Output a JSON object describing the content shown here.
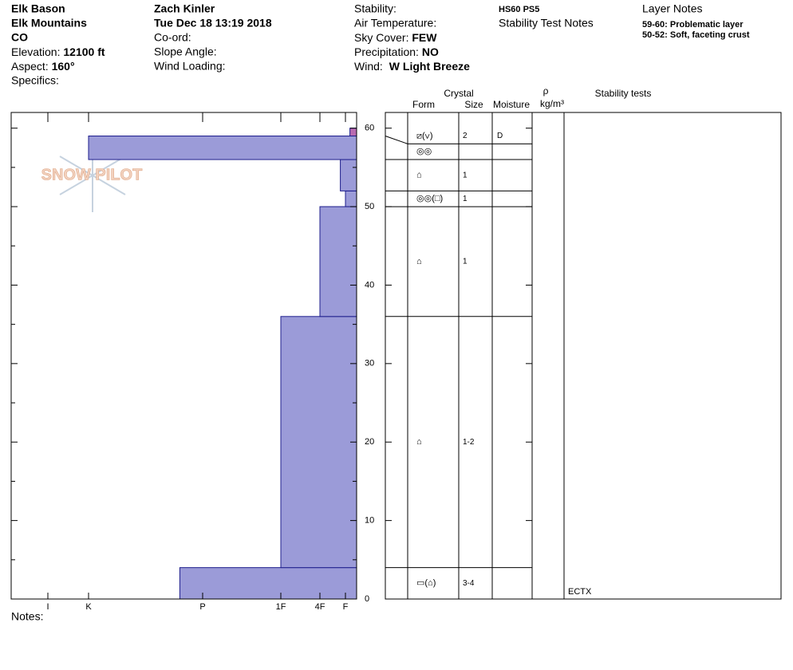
{
  "header": {
    "location": "Elk Bason",
    "range": "Elk Mountains",
    "state": "CO",
    "elevation_label": "Elevation:",
    "elevation": "12100 ft",
    "aspect_label": "Aspect:",
    "aspect": "160°",
    "specifics": "Specifics:",
    "observer": "Zach Kinler",
    "date": "Tue Dec 18 13:19 2018",
    "coord": "Co-ord:",
    "slope": "Slope Angle:",
    "wind_loading": "Wind Loading:",
    "stability": "Stability:",
    "air_temp": "Air Temperature:",
    "sky_label": "Sky Cover:",
    "sky": "FEW",
    "precip_label": "Precipitation:",
    "precip": "NO",
    "wind_label": "Wind:",
    "wind": "W Light Breeze",
    "hs": "HS60 PS5",
    "stability_notes": "Stability Test Notes",
    "layer_notes_title": "Layer Notes",
    "layer_notes": [
      [
        "59-60:",
        "Problematic layer"
      ],
      [
        "50-52:",
        "Soft, faceting crust"
      ]
    ]
  },
  "logo": "SNOW PILOT",
  "notes": "Notes:",
  "chart_data": {
    "type": "hardness",
    "ylim": [
      0,
      62
    ],
    "yticks": [
      0,
      10,
      20,
      30,
      40,
      50,
      60
    ],
    "minor_yticks": [
      5,
      15,
      25,
      35,
      45,
      55
    ],
    "xlim": [
      0,
      7
    ],
    "xticks": [
      {
        "value": 6,
        "label": "I"
      },
      {
        "value": 5,
        "label": "K"
      },
      {
        "value": 4,
        "label": "P"
      },
      {
        "value": 3,
        "label": "1F"
      },
      {
        "value": 2,
        "label": "4F"
      },
      {
        "value": 1,
        "label": "F"
      }
    ],
    "layers": [
      {
        "bottom": 0,
        "top": 4,
        "hardness": 4.2,
        "color": "#9b9bd8"
      },
      {
        "bottom": 4,
        "top": 36,
        "hardness": 3,
        "color": "#9b9bd8"
      },
      {
        "bottom": 36,
        "top": 50,
        "hardness": 2,
        "color": "#9b9bd8"
      },
      {
        "bottom": 50,
        "top": 52,
        "hardness": 1,
        "color": "#9b9bd8"
      },
      {
        "bottom": 52,
        "top": 56,
        "hardness": 1.2,
        "color": "#9b9bd8"
      },
      {
        "bottom": 56,
        "top": 59,
        "hardness": 5,
        "color": "#9b9bd8"
      },
      {
        "bottom": 59,
        "top": 60,
        "hardness": 0.6,
        "color": "#b86ab0"
      }
    ],
    "crystal_table": {
      "crystal": "Crystal",
      "form": "Form",
      "size": "Size",
      "moisture": "Moisture",
      "density_symbol": "ρ",
      "density_unit": "kg/m³",
      "stability_tests": "Stability tests",
      "rows": [
        {
          "top": 60,
          "bottom": 58,
          "form": "⧄(∨)",
          "size": "2",
          "moisture": "D"
        },
        {
          "top": 58,
          "bottom": 56,
          "form": "◎◎"
        },
        {
          "top": 56,
          "bottom": 52,
          "form": "⌂",
          "size": "1"
        },
        {
          "top": 52,
          "bottom": 50,
          "form": "◎◎(□)",
          "size": "1"
        },
        {
          "top": 50,
          "bottom": 36,
          "form": "⌂",
          "size": "1"
        },
        {
          "top": 36,
          "bottom": 4,
          "form": "⌂",
          "size": "1-2"
        },
        {
          "top": 4,
          "bottom": 0,
          "form": "▭(⌂)",
          "size": "3-4"
        }
      ],
      "tests": [
        "ECTX"
      ]
    }
  }
}
